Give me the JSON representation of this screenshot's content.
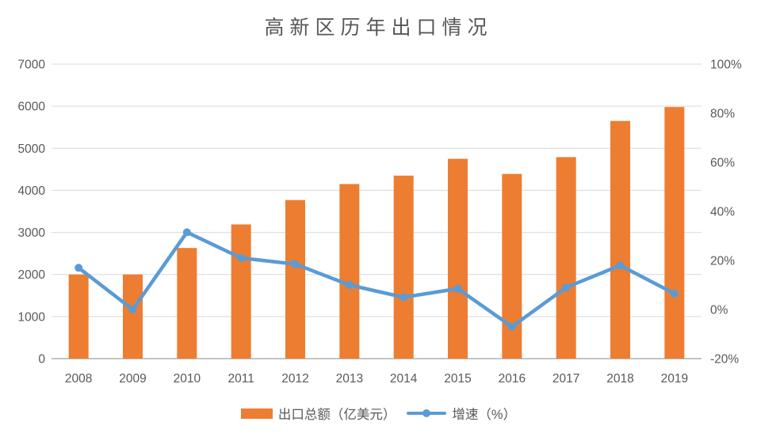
{
  "title": "高新区历年出口情况",
  "legend": {
    "items": [
      {
        "label": "出口总额（亿美元）",
        "marker": "bar-swatch"
      },
      {
        "label": "增速（%）",
        "marker": "line-swatch"
      }
    ]
  },
  "colors": {
    "bar": "#ED7D31",
    "line": "#5B9BD5",
    "grid": "#D9D9D9",
    "axis_line": "#C3C3C3",
    "text": "#595959",
    "title_text": "#575757"
  },
  "chart_data": {
    "type": "combo-bar-line",
    "title": "高新区历年出口情况",
    "categories": [
      "2008",
      "2009",
      "2010",
      "2011",
      "2012",
      "2013",
      "2014",
      "2015",
      "2016",
      "2017",
      "2018",
      "2019"
    ],
    "series": [
      {
        "name": "出口总额（亿美元）",
        "type": "bar",
        "axis": "left",
        "color": "#ED7D31",
        "values": [
          2000,
          2000,
          2630,
          3190,
          3770,
          4150,
          4350,
          4750,
          4390,
          4790,
          5650,
          5980
        ]
      },
      {
        "name": "增速（%）",
        "type": "line",
        "axis": "right",
        "color": "#5B9BD5",
        "values": [
          17,
          0,
          31.5,
          21,
          18.5,
          10,
          5,
          8.5,
          -7,
          9,
          18,
          6.5
        ]
      }
    ],
    "left_axis": {
      "min": 0,
      "max": 7000,
      "step": 1000,
      "tick_labels": [
        "0",
        "1000",
        "2000",
        "3000",
        "4000",
        "5000",
        "6000",
        "7000"
      ]
    },
    "right_axis": {
      "min": -20,
      "max": 100,
      "step": 20,
      "tick_labels": [
        "-20%",
        "0%",
        "20%",
        "40%",
        "60%",
        "80%",
        "100%"
      ]
    },
    "grid": "horizontal",
    "legend_position": "bottom"
  }
}
